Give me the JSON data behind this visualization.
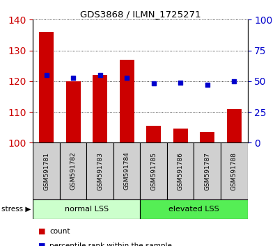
{
  "title": "GDS3868 / ILMN_1725271",
  "samples": [
    "GSM591781",
    "GSM591782",
    "GSM591783",
    "GSM591784",
    "GSM591785",
    "GSM591786",
    "GSM591787",
    "GSM591788"
  ],
  "counts": [
    136,
    120,
    122,
    127,
    105.5,
    104.5,
    103.5,
    111
  ],
  "percentiles": [
    55,
    53,
    55,
    53,
    48,
    49,
    47,
    50
  ],
  "ylim_left": [
    100,
    140
  ],
  "ylim_right": [
    0,
    100
  ],
  "yticks_left": [
    100,
    110,
    120,
    130,
    140
  ],
  "yticks_right": [
    0,
    25,
    50,
    75,
    100
  ],
  "bar_color": "#CC0000",
  "dot_color": "#0000CC",
  "bar_bottom": 100,
  "group1_label": "normal LSS",
  "group2_label": "elevated LSS",
  "group1_color": "#CCFFCC",
  "group2_color": "#55EE55",
  "stress_label": "stress",
  "legend_count_label": "count",
  "legend_pct_label": "percentile rank within the sample",
  "tick_label_color_left": "#CC0000",
  "tick_label_color_right": "#0000CC",
  "sample_box_color": "#D0D0D0",
  "group_split": 4
}
